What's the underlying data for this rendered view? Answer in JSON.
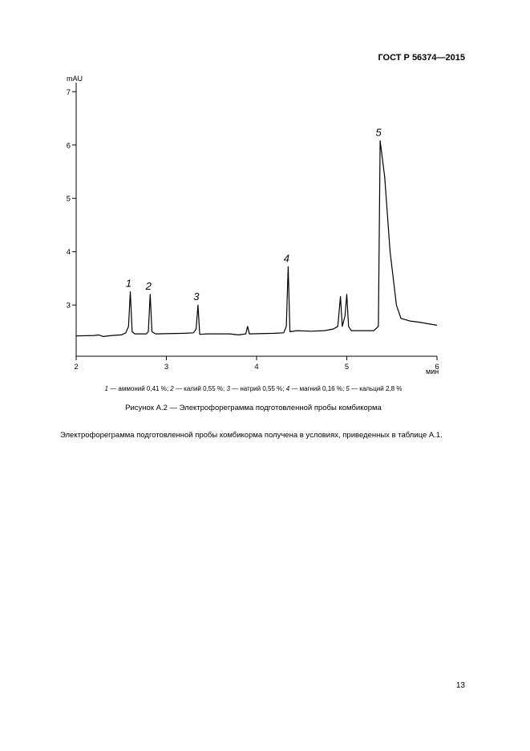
{
  "header": {
    "title": "ГОСТ Р 56374—2015"
  },
  "chart_data": {
    "type": "line",
    "x_label": "мин",
    "y_label": "mAU",
    "color": "#000000",
    "xlim": [
      2,
      6
    ],
    "xticks": [
      2,
      3,
      4,
      5,
      6
    ],
    "ylim": [
      2.04,
      7.17
    ],
    "yticks": [
      3,
      4,
      5,
      6,
      7
    ],
    "x": [
      2.0,
      2.2,
      2.25,
      2.3,
      2.4,
      2.5,
      2.55,
      2.58,
      2.6,
      2.62,
      2.65,
      2.78,
      2.8,
      2.82,
      2.84,
      2.88,
      3.2,
      3.3,
      3.33,
      3.35,
      3.37,
      3.45,
      3.7,
      3.8,
      3.88,
      3.9,
      3.92,
      4.2,
      4.3,
      4.33,
      4.35,
      4.37,
      4.45,
      4.6,
      4.75,
      4.85,
      4.9,
      4.93,
      4.95,
      4.98,
      5.0,
      5.02,
      5.05,
      5.3,
      5.35,
      5.37,
      5.42,
      5.48,
      5.55,
      5.6,
      5.7,
      5.8,
      5.9,
      6.0
    ],
    "values": [
      2.42,
      2.43,
      2.44,
      2.41,
      2.43,
      2.44,
      2.48,
      2.6,
      3.25,
      2.5,
      2.46,
      2.46,
      2.5,
      3.2,
      2.5,
      2.46,
      2.47,
      2.48,
      2.55,
      3.0,
      2.45,
      2.46,
      2.46,
      2.44,
      2.46,
      2.6,
      2.46,
      2.47,
      2.48,
      2.6,
      3.72,
      2.5,
      2.52,
      2.51,
      2.52,
      2.55,
      2.6,
      3.16,
      2.6,
      2.8,
      3.2,
      2.6,
      2.52,
      2.52,
      2.6,
      6.08,
      5.4,
      4.0,
      3.0,
      2.75,
      2.7,
      2.68,
      2.65,
      2.62
    ],
    "annotations": [
      {
        "text": "1",
        "x": 2.6,
        "y": 3.25
      },
      {
        "text": "2",
        "x": 2.82,
        "y": 3.2
      },
      {
        "text": "3",
        "x": 3.35,
        "y": 3.0
      },
      {
        "text": "4",
        "x": 4.35,
        "y": 3.72
      },
      {
        "text": "5",
        "x": 5.37,
        "y": 6.08
      }
    ]
  },
  "legend": [
    {
      "num": "1",
      "text": " — аммоний 0,41 %; "
    },
    {
      "num": "2",
      "text": " — калий 0,55 %; "
    },
    {
      "num": "3",
      "text": " — натрий 0,55 %; "
    },
    {
      "num": "4",
      "text": " — магний 0,16 %; "
    },
    {
      "num": "5",
      "text": " — кальций 2,8 %"
    }
  ],
  "figure_caption": "Рисунок А.2 — Электрофореграмма подготовленной пробы комбикорма",
  "paragraph": "Электрофореграмма подготовленной пробы комбикорма получена в условиях, приведенных в таблице А.1.",
  "page_number": "13"
}
